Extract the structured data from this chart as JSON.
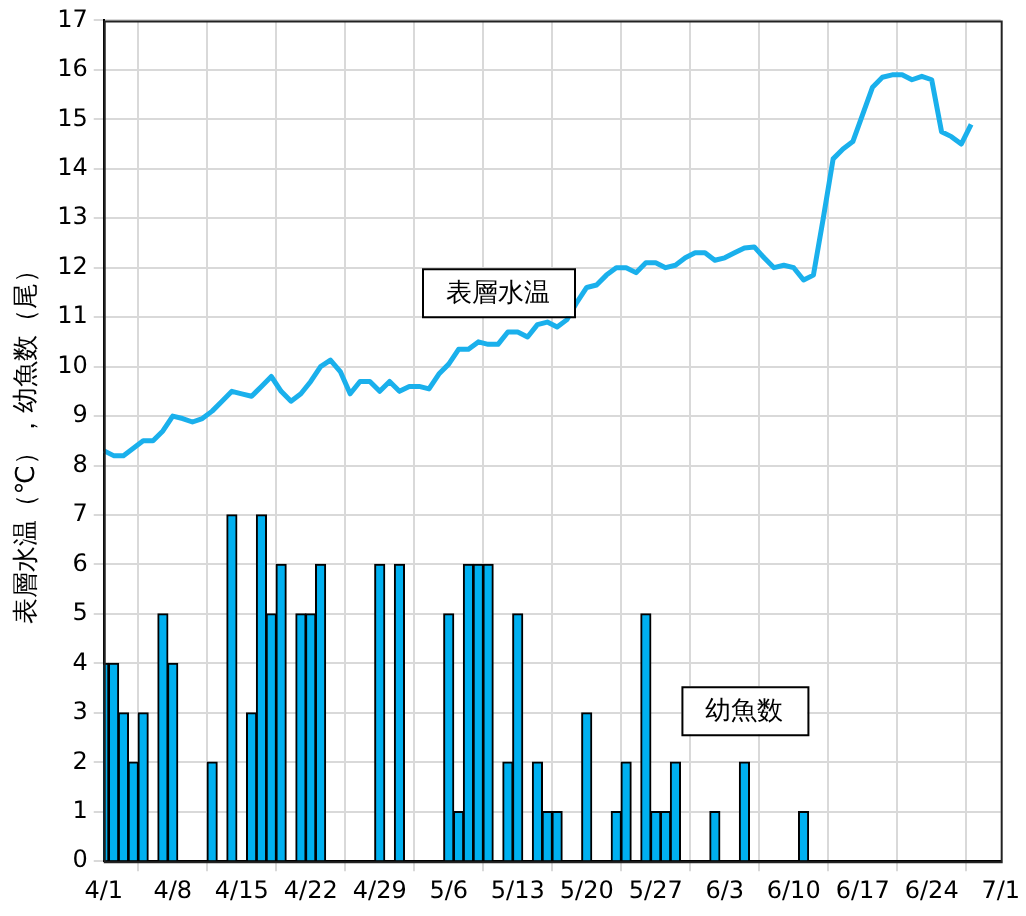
{
  "chart_data": {
    "type": "bar",
    "ylabel": "表層水温（℃），幼魚数（尾）",
    "xlim": [
      "--04-01",
      "--07-01"
    ],
    "xticks": [
      {
        "value": "--04-01",
        "label": "4/1"
      },
      {
        "value": "--04-08",
        "label": "4/8"
      },
      {
        "value": "--04-15",
        "label": "4/15"
      },
      {
        "value": "--04-22",
        "label": "4/22"
      },
      {
        "value": "--04-29",
        "label": "4/29"
      },
      {
        "value": "--05-06",
        "label": "5/6"
      },
      {
        "value": "--05-13",
        "label": "5/13"
      },
      {
        "value": "--05-20",
        "label": "5/20"
      },
      {
        "value": "--05-27",
        "label": "5/27"
      },
      {
        "value": "--06-03",
        "label": "6/3"
      },
      {
        "value": "--06-10",
        "label": "6/10"
      },
      {
        "value": "--06-17",
        "label": "6/17"
      },
      {
        "value": "--06-24",
        "label": "6/24"
      },
      {
        "value": "--07-01",
        "label": "7/1"
      }
    ],
    "ylim": [
      0,
      17
    ],
    "yticks": [
      0,
      1,
      2,
      3,
      4,
      5,
      6,
      7,
      8,
      9,
      10,
      11,
      12,
      13,
      14,
      15,
      16,
      17
    ],
    "grid": true,
    "series": [
      {
        "name": "幼魚数",
        "color": "#00b0f0",
        "x": [
          "--04-01",
          "--04-02",
          "--04-03",
          "--04-04",
          "--04-05",
          "--04-07",
          "--04-08",
          "--04-12",
          "--04-14",
          "--04-16",
          "--04-17",
          "--04-18",
          "--04-19",
          "--04-21",
          "--04-22",
          "--04-23",
          "--04-29",
          "--05-01",
          "--05-06",
          "--05-07",
          "--05-08",
          "--05-09",
          "--05-10",
          "--05-12",
          "--05-13",
          "--05-15",
          "--05-16",
          "--05-17",
          "--05-20",
          "--05-23",
          "--05-24",
          "--05-26",
          "--05-27",
          "--05-28",
          "--05-29",
          "--06-02",
          "--06-05",
          "--06-11"
        ],
        "values": [
          4,
          4,
          3,
          2,
          3,
          5,
          4,
          2,
          7,
          3,
          7,
          5,
          6,
          5,
          5,
          6,
          6,
          6,
          5,
          1,
          6,
          6,
          6,
          2,
          5,
          2,
          1,
          1,
          3,
          1,
          2,
          5,
          1,
          1,
          2,
          1,
          2,
          1
        ]
      },
      {
        "name": "表層水温",
        "type": "line",
        "color": "#1ab0ec",
        "x": [
          "--04-01",
          "--04-02",
          "--04-03",
          "--04-04",
          "--04-05",
          "--04-06",
          "--04-07",
          "--04-08",
          "--04-09",
          "--04-10",
          "--04-11",
          "--04-12",
          "--04-13",
          "--04-14",
          "--04-15",
          "--04-16",
          "--04-17",
          "--04-18",
          "--04-19",
          "--04-20",
          "--04-21",
          "--04-22",
          "--04-23",
          "--04-24",
          "--04-25",
          "--04-26",
          "--04-27",
          "--04-28",
          "--04-29",
          "--04-30",
          "--05-01",
          "--05-02",
          "--05-03",
          "--05-04",
          "--05-05",
          "--05-06",
          "--05-07",
          "--05-08",
          "--05-09",
          "--05-10",
          "--05-11",
          "--05-12",
          "--05-13",
          "--05-14",
          "--05-15",
          "--05-16",
          "--05-17",
          "--05-18",
          "--05-19",
          "--05-20",
          "--05-21",
          "--05-22",
          "--05-23",
          "--05-24",
          "--05-25",
          "--05-26",
          "--05-27",
          "--05-28",
          "--05-29",
          "--05-30",
          "--05-31",
          "--06-01",
          "--06-02",
          "--06-03",
          "--06-04",
          "--06-05",
          "--06-06",
          "--06-07",
          "--06-08",
          "--06-09",
          "--06-10",
          "--06-11",
          "--06-12",
          "--06-13",
          "--06-14",
          "--06-15",
          "--06-16",
          "--06-17",
          "--06-18",
          "--06-19",
          "--06-20",
          "--06-21",
          "--06-22",
          "--06-23",
          "--06-24",
          "--06-25",
          "--06-26",
          "--06-27",
          "--06-28"
        ],
        "values": [
          8.3,
          8.2,
          8.2,
          8.35,
          8.5,
          8.5,
          8.7,
          9.0,
          8.95,
          8.88,
          8.95,
          9.1,
          9.3,
          9.5,
          9.45,
          9.4,
          9.6,
          9.8,
          9.5,
          9.3,
          9.45,
          9.7,
          10.0,
          10.13,
          9.9,
          9.45,
          9.7,
          9.7,
          9.5,
          9.7,
          9.5,
          9.6,
          9.6,
          9.55,
          9.85,
          10.05,
          10.35,
          10.35,
          10.5,
          10.45,
          10.45,
          10.7,
          10.7,
          10.6,
          10.85,
          10.9,
          10.8,
          10.95,
          11.3,
          11.6,
          11.65,
          11.85,
          12.0,
          12.0,
          11.9,
          12.1,
          12.1,
          12.0,
          12.05,
          12.2,
          12.3,
          12.3,
          12.15,
          12.2,
          12.3,
          12.4,
          12.42,
          12.2,
          12.0,
          12.05,
          12.0,
          11.75,
          11.85,
          13.0,
          14.2,
          14.4,
          14.55,
          15.1,
          15.65,
          15.85,
          15.9,
          15.9,
          15.8,
          15.87,
          15.8,
          14.75,
          14.65,
          14.5,
          14.9
        ]
      }
    ]
  }
}
